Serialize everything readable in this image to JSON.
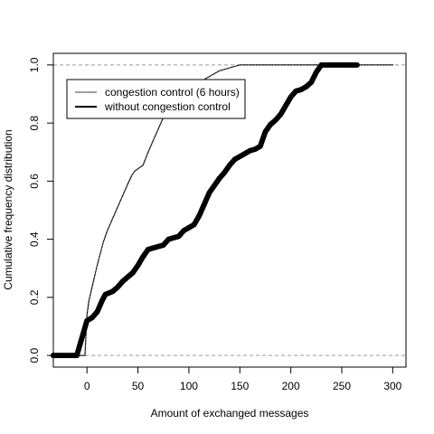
{
  "chart_data": {
    "type": "scatter",
    "title": "",
    "xlabel": "Amount of exchanged messages",
    "ylabel": "Cumulative frequency distribution",
    "xlim": [
      -33,
      313
    ],
    "ylim": [
      -0.04,
      1.04
    ],
    "x_ticks": [
      0,
      50,
      100,
      150,
      200,
      250,
      300
    ],
    "x_tick_labels": [
      "0",
      "50",
      "100",
      "150",
      "200",
      "250",
      "300"
    ],
    "y_ticks": [
      0.0,
      0.2,
      0.4,
      0.6,
      0.8,
      1.0
    ],
    "y_tick_labels": [
      "0.0",
      "0.2",
      "0.4",
      "0.6",
      "0.8",
      "1.0"
    ],
    "reference_lines": [
      0.0,
      1.0
    ],
    "legend": {
      "placement": "top-left"
    },
    "series": [
      {
        "name": "congestion control (6 hours)",
        "style": "small-dots",
        "points": [
          [
            -35,
            0
          ],
          [
            -2,
            0
          ],
          [
            0,
            0.14
          ],
          [
            2,
            0.19
          ],
          [
            4,
            0.22
          ],
          [
            6,
            0.25
          ],
          [
            8,
            0.28
          ],
          [
            10,
            0.31
          ],
          [
            13,
            0.35
          ],
          [
            16,
            0.39
          ],
          [
            20,
            0.43
          ],
          [
            25,
            0.47
          ],
          [
            30,
            0.51
          ],
          [
            35,
            0.55
          ],
          [
            40,
            0.59
          ],
          [
            44,
            0.62
          ],
          [
            47,
            0.635
          ],
          [
            55,
            0.655
          ],
          [
            60,
            0.7
          ],
          [
            65,
            0.74
          ],
          [
            70,
            0.78
          ],
          [
            75,
            0.82
          ],
          [
            80,
            0.86
          ],
          [
            90,
            0.89
          ],
          [
            100,
            0.92
          ],
          [
            110,
            0.94
          ],
          [
            120,
            0.96
          ],
          [
            130,
            0.98
          ],
          [
            140,
            0.99
          ],
          [
            150,
            1.0
          ],
          [
            300,
            1.0
          ]
        ]
      },
      {
        "name": "without congestion control",
        "style": "large-dots",
        "points": [
          [
            -35,
            0
          ],
          [
            -10,
            0
          ],
          [
            0,
            0.12
          ],
          [
            5,
            0.13
          ],
          [
            10,
            0.15
          ],
          [
            15,
            0.19
          ],
          [
            18,
            0.21
          ],
          [
            25,
            0.22
          ],
          [
            30,
            0.235
          ],
          [
            35,
            0.255
          ],
          [
            40,
            0.27
          ],
          [
            45,
            0.285
          ],
          [
            50,
            0.31
          ],
          [
            55,
            0.34
          ],
          [
            60,
            0.365
          ],
          [
            65,
            0.37
          ],
          [
            70,
            0.375
          ],
          [
            75,
            0.38
          ],
          [
            80,
            0.4
          ],
          [
            85,
            0.405
          ],
          [
            90,
            0.41
          ],
          [
            95,
            0.43
          ],
          [
            100,
            0.44
          ],
          [
            105,
            0.45
          ],
          [
            110,
            0.48
          ],
          [
            115,
            0.52
          ],
          [
            120,
            0.56
          ],
          [
            125,
            0.585
          ],
          [
            130,
            0.61
          ],
          [
            135,
            0.63
          ],
          [
            140,
            0.655
          ],
          [
            145,
            0.675
          ],
          [
            150,
            0.685
          ],
          [
            155,
            0.695
          ],
          [
            160,
            0.705
          ],
          [
            165,
            0.71
          ],
          [
            170,
            0.72
          ],
          [
            175,
            0.77
          ],
          [
            180,
            0.795
          ],
          [
            185,
            0.81
          ],
          [
            190,
            0.83
          ],
          [
            195,
            0.86
          ],
          [
            200,
            0.89
          ],
          [
            205,
            0.91
          ],
          [
            210,
            0.915
          ],
          [
            215,
            0.925
          ],
          [
            220,
            0.94
          ],
          [
            225,
            0.975
          ],
          [
            230,
            1.0
          ],
          [
            240,
            1.0
          ],
          [
            265,
            1.0
          ]
        ]
      }
    ]
  }
}
